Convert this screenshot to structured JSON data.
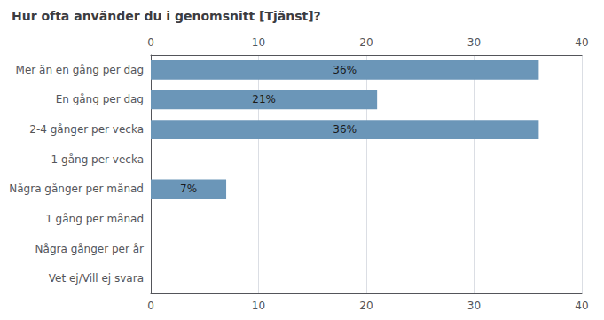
{
  "chart_data": {
    "type": "bar",
    "orientation": "horizontal",
    "title": "Hur ofta använder du i genomsnitt [Tjänst]?",
    "categories": [
      "Mer än en gång per dag",
      "En gång per dag",
      "2-4 gånger per vecka",
      "1 gång per vecka",
      "Några gånger per månad",
      "1 gång per månad",
      "Några gånger per år",
      "Vet ej/Vill ej svara"
    ],
    "values": [
      36,
      21,
      36,
      0,
      7,
      0,
      0,
      0
    ],
    "value_labels": [
      "36%",
      "21%",
      "36%",
      null,
      "7%",
      null,
      null,
      null
    ],
    "data_labels": true,
    "color": "#6b96b8",
    "xlim": [
      0,
      40
    ],
    "xticks": [
      0,
      10,
      20,
      30,
      40
    ],
    "grid": true
  }
}
